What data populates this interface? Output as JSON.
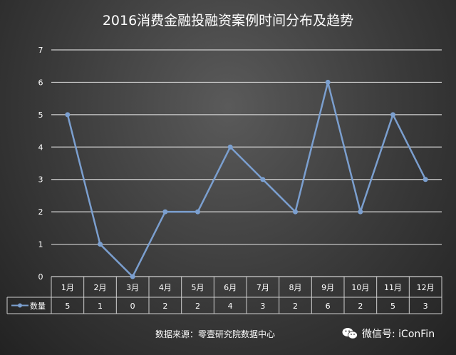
{
  "chart_data": {
    "type": "line",
    "title": "2016消费金融投融资案例时间分布及趋势",
    "categories": [
      "1月",
      "2月",
      "3月",
      "4月",
      "5月",
      "6月",
      "7月",
      "8月",
      "9月",
      "10月",
      "11月",
      "12月"
    ],
    "series": [
      {
        "name": "数量",
        "values": [
          5,
          1,
          0,
          2,
          2,
          4,
          3,
          2,
          6,
          2,
          5,
          3
        ]
      }
    ],
    "yticks": [
      "0",
      "1",
      "2",
      "3",
      "4",
      "5",
      "6",
      "7"
    ],
    "ylim": [
      0,
      7
    ],
    "grid": true,
    "data_table": true,
    "colors": {
      "series": "#7b9fcf",
      "grid": "#cfcfcf",
      "text": "#ffffff"
    }
  },
  "footer": {
    "source": "数据来源：零壹研究院数据中心",
    "wechat": "微信号: iConFin"
  },
  "icons": {
    "wechat": "wechat-icon"
  }
}
